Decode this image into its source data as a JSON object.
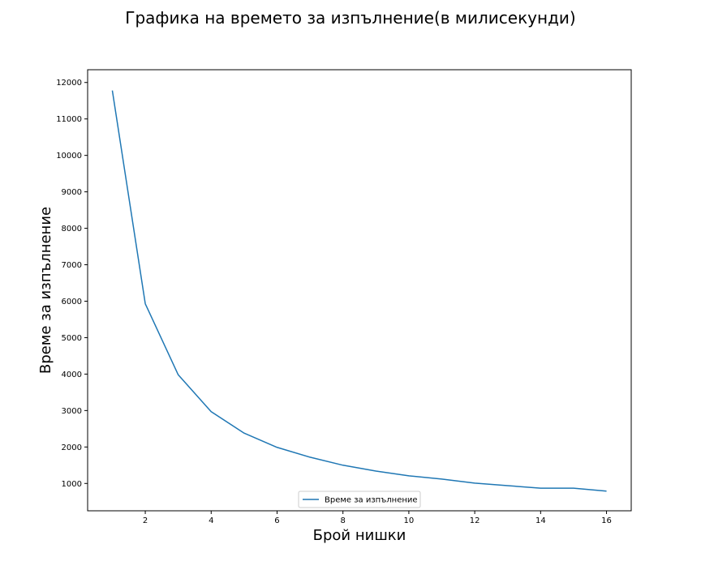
{
  "chart_data": {
    "type": "line",
    "title": "Графика на времето за изпълнение(в милисекунди)",
    "xlabel": "Брой нишки",
    "ylabel": "Време за изпълнение",
    "xlim": [
      0.25,
      16.75
    ],
    "ylim": [
      250,
      12350
    ],
    "xticks": [
      2,
      4,
      6,
      8,
      10,
      12,
      14,
      16
    ],
    "yticks": [
      1000,
      2000,
      3000,
      4000,
      5000,
      6000,
      7000,
      8000,
      9000,
      10000,
      11000,
      12000
    ],
    "grid": false,
    "legend_position": "bottom-center",
    "series": [
      {
        "name": "Време за изпълнение",
        "color": "#1f77b4",
        "x": [
          1,
          2,
          3,
          4,
          5,
          6,
          7,
          8,
          9,
          10,
          11,
          12,
          13,
          14,
          15,
          16
        ],
        "y": [
          11780,
          5930,
          3980,
          2970,
          2380,
          1990,
          1720,
          1500,
          1340,
          1210,
          1120,
          1010,
          940,
          870,
          870,
          790
        ]
      }
    ]
  }
}
